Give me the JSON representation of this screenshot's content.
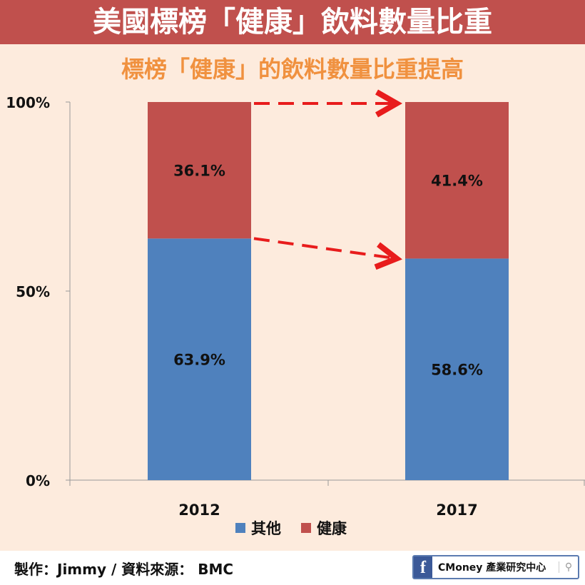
{
  "header": {
    "title": "美國標榜「健康」飲料數量比重"
  },
  "chart_data": {
    "type": "bar",
    "stacked": true,
    "title": "標榜「健康」的飲料數量比重提高",
    "categories": [
      "2012",
      "2017"
    ],
    "series": [
      {
        "name": "其他",
        "color": "#4f81bd",
        "values": [
          63.9,
          58.6
        ],
        "labels": [
          "63.9%",
          "58.6%"
        ]
      },
      {
        "name": "健康",
        "color": "#c0504d",
        "values": [
          36.1,
          41.4
        ],
        "labels": [
          "36.1%",
          "41.4%"
        ]
      }
    ],
    "ylim": [
      0,
      100
    ],
    "yticks": [
      {
        "v": 0,
        "label": "0%"
      },
      {
        "v": 50,
        "label": "50%"
      },
      {
        "v": 100,
        "label": "100%"
      }
    ],
    "legend": "bottom",
    "annotations": "red dashed arrows from 2012 to 2017 at top and at the boundary"
  },
  "footer": {
    "credit": "製作：Jimmy / 資料來源： BMC",
    "fb_icon": "f",
    "brand": "CMoney 產業研究中心",
    "search_icon": "⚲"
  }
}
